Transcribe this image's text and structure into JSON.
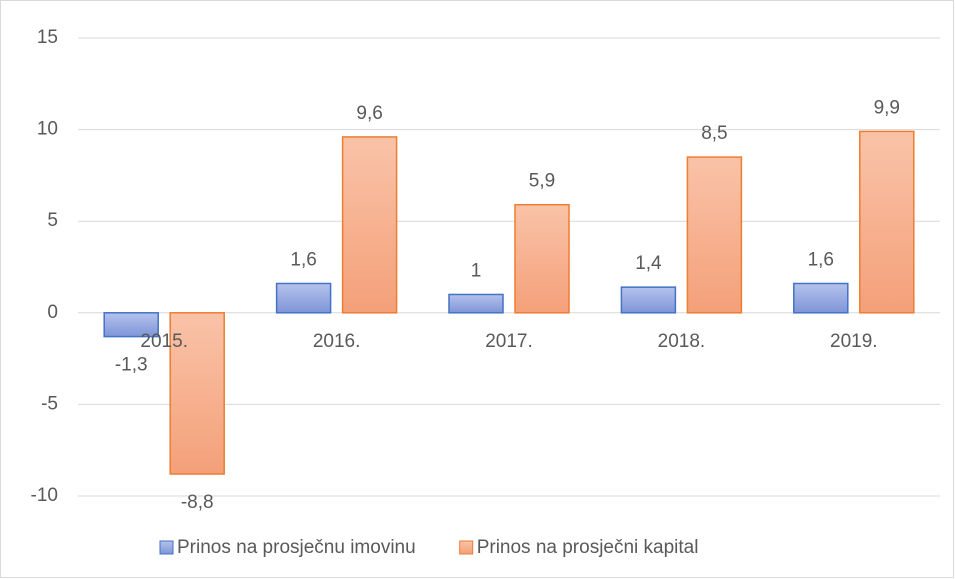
{
  "chart_data": {
    "type": "bar",
    "categories": [
      "2015.",
      "2016.",
      "2017.",
      "2018.",
      "2019."
    ],
    "series": [
      {
        "name": "Prinos na prosječnu imovinu",
        "color": "#4472c4",
        "values": [
          -1.3,
          1.6,
          1,
          1.4,
          1.6
        ],
        "value_labels": [
          "-1,3",
          "1,6",
          "1",
          "1,4",
          "1,6"
        ]
      },
      {
        "name": "Prinos na prosječni kapital",
        "color": "#ed7d31",
        "values": [
          -8.8,
          9.6,
          5.9,
          8.5,
          9.9
        ],
        "value_labels": [
          "-8,8",
          "9,6",
          "5,9",
          "8,5",
          "9,9"
        ]
      }
    ],
    "ylim": [
      -10,
      15
    ],
    "yticks": [
      -10,
      -5,
      0,
      5,
      10,
      15
    ],
    "grid": true,
    "legend": "bottom"
  }
}
